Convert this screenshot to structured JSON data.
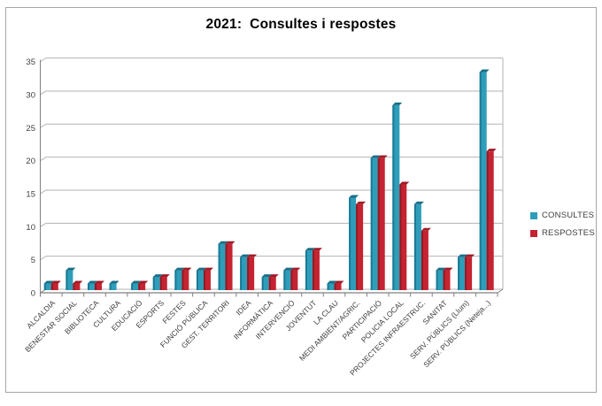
{
  "window": {
    "title": "2021:  Consultes i respostes"
  },
  "chart_data": {
    "type": "bar",
    "style": "3d-clustered-column",
    "title": "2021:  Consultes i respostes",
    "xlabel": "",
    "ylabel": "",
    "ylim": [
      0,
      35
    ],
    "yticks": [
      0,
      5,
      10,
      15,
      20,
      25,
      30,
      35
    ],
    "grid": true,
    "legend_position": "right",
    "categories": [
      "ALCALDIA",
      "BENESTAR SOCIAL",
      "BIBLIOTECA",
      "CULTURA",
      "EDUCACIÓ",
      "ESPORTS",
      "FESTES",
      "FUNCIÓ PÚBLICA",
      "GEST. TERRITORI",
      "IDEA",
      "INFORMÀTICA",
      "INTERVENCIÓ",
      "JOVENTUT",
      "LA CLAU",
      "MEDI AMBIENT/AGRIC.",
      "PARTICIPACIÓ",
      "POLICIA LOCAL",
      "PROJECTES INFRAESTRUC.",
      "SANITAT",
      "SERV. PÚBLICS (Llum)",
      "SERV. PÚBLICS (Neteja...)"
    ],
    "series": [
      {
        "name": "CONSULTES",
        "color": "#2E9DB9",
        "edge_color": "#1A7A96",
        "cap_color": "#1C6E86",
        "values": [
          1,
          3,
          1,
          1,
          1,
          2,
          3,
          3,
          7,
          5,
          2,
          3,
          6,
          1,
          14,
          20,
          28,
          13,
          3,
          5,
          33
        ]
      },
      {
        "name": "RESPOSTES",
        "color": "#C52331",
        "edge_color": "#8E1B24",
        "cap_color": "#9E1C28",
        "values": [
          1,
          1,
          1,
          0,
          1,
          2,
          3,
          3,
          7,
          5,
          2,
          3,
          6,
          1,
          13,
          20,
          16,
          9,
          3,
          5,
          21
        ]
      }
    ]
  },
  "legend": {
    "items": [
      {
        "label": "CONSULTES",
        "color": "#2E9DB9"
      },
      {
        "label": "RESPOSTES",
        "color": "#C52331"
      }
    ]
  },
  "colors": {
    "gridline": "#b3b3b3",
    "axis": "#7f7f7f",
    "tick_label": "#404040",
    "frame_border": "#a6a6a6"
  }
}
